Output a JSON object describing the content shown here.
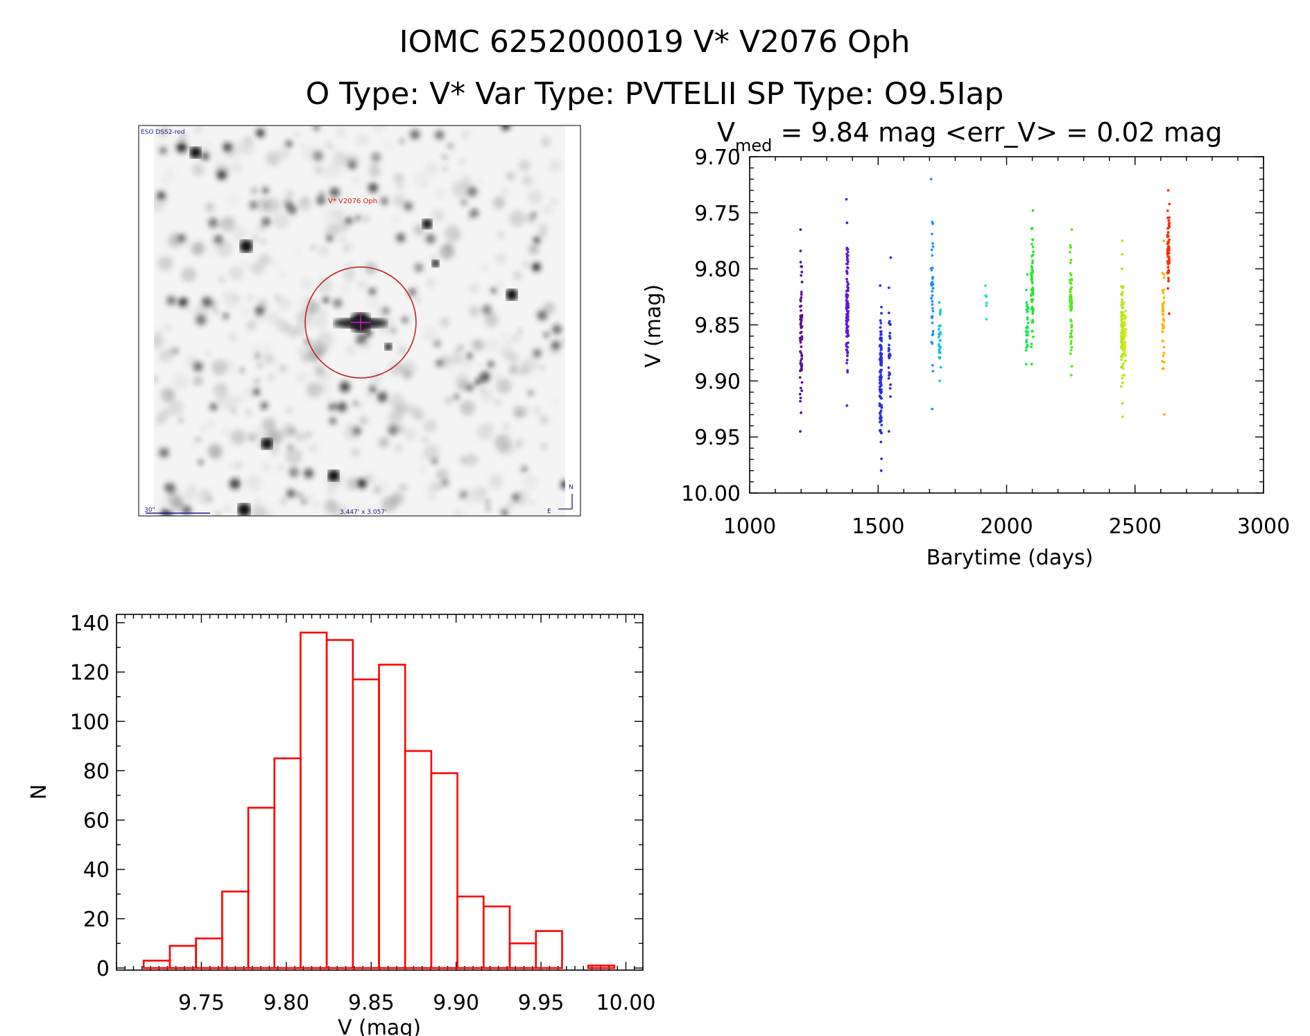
{
  "header": {
    "title_line1": "IOMC 6252000019   V* V2076 Oph",
    "title_line2": "O Type: V*  Var Type: PVTELII  SP Type: O9.5Iap"
  },
  "image_panel": {
    "survey_label": "ESO DSS2-red",
    "object_label": "V* V2076 Oph",
    "scale_label": "30\"",
    "size_label": "3.447' x 3.057'",
    "north_label": "N",
    "east_label": "E"
  },
  "chart_data": [
    {
      "type": "scatter",
      "title_prefix": "V",
      "title_subscript": "med",
      "title_rest": " = 9.84 mag <err_V> = 0.02 mag",
      "xlabel": "Barytime (days)",
      "ylabel": "V (mag)",
      "xlim": [
        1000,
        3000
      ],
      "ylim": [
        9.7,
        10.0
      ],
      "y_inverted": true,
      "xticks": [
        "1000",
        "1500",
        "2000",
        "2500",
        "3000"
      ],
      "yticks": [
        "9.70",
        "9.75",
        "9.80",
        "9.85",
        "9.90",
        "9.95",
        "10.00"
      ],
      "color_scheme": "rainbow by time",
      "seasons": [
        {
          "x": 1200,
          "vmin": 9.765,
          "vmax": 9.945,
          "n": 70,
          "color": "#5a0f99"
        },
        {
          "x": 1380,
          "vmin": 9.738,
          "vmax": 9.922,
          "n": 110,
          "color": "#5e1ad6"
        },
        {
          "x": 1510,
          "vmin": 9.815,
          "vmax": 9.98,
          "n": 110,
          "color": "#2a2ee6"
        },
        {
          "x": 1545,
          "vmin": 9.79,
          "vmax": 9.945,
          "n": 30,
          "color": "#2a2ee6"
        },
        {
          "x": 1710,
          "vmin": 9.72,
          "vmax": 9.925,
          "n": 40,
          "color": "#1e90ff"
        },
        {
          "x": 1740,
          "vmin": 9.83,
          "vmax": 9.9,
          "n": 30,
          "color": "#17c4e0"
        },
        {
          "x": 1920,
          "vmin": 9.815,
          "vmax": 9.845,
          "n": 6,
          "color": "#1ee6b4"
        },
        {
          "x": 2080,
          "vmin": 9.805,
          "vmax": 9.885,
          "n": 30,
          "color": "#1ee65a"
        },
        {
          "x": 2100,
          "vmin": 9.748,
          "vmax": 9.885,
          "n": 60,
          "color": "#28e628"
        },
        {
          "x": 2250,
          "vmin": 9.765,
          "vmax": 9.895,
          "n": 70,
          "color": "#5ae61e"
        },
        {
          "x": 2450,
          "vmin": 9.775,
          "vmax": 9.932,
          "n": 90,
          "color": "#b4e61e"
        },
        {
          "x": 2460,
          "vmin": 9.83,
          "vmax": 9.895,
          "n": 40,
          "color": "#d7e619"
        },
        {
          "x": 2610,
          "vmin": 9.775,
          "vmax": 9.93,
          "n": 40,
          "color": "#ffb400"
        },
        {
          "x": 2630,
          "vmin": 9.73,
          "vmax": 9.84,
          "n": 60,
          "color": "#ff2a00"
        }
      ]
    },
    {
      "type": "bar",
      "subtype": "histogram",
      "xlabel": "V (mag)",
      "ylabel": "N",
      "xlim": [
        9.7,
        10.01
      ],
      "ylim": [
        0,
        140
      ],
      "xticks": [
        "9.75",
        "9.80",
        "9.85",
        "9.90",
        "9.95",
        "10.00"
      ],
      "yticks": [
        "0",
        "20",
        "40",
        "60",
        "80",
        "100",
        "120",
        "140"
      ],
      "bin_width": 0.0154,
      "first_bin_start": 9.716,
      "values": [
        3,
        9,
        12,
        31,
        65,
        85,
        136,
        133,
        117,
        123,
        88,
        79,
        29,
        25,
        10,
        15,
        0,
        1
      ],
      "color": "#ff0000"
    }
  ]
}
